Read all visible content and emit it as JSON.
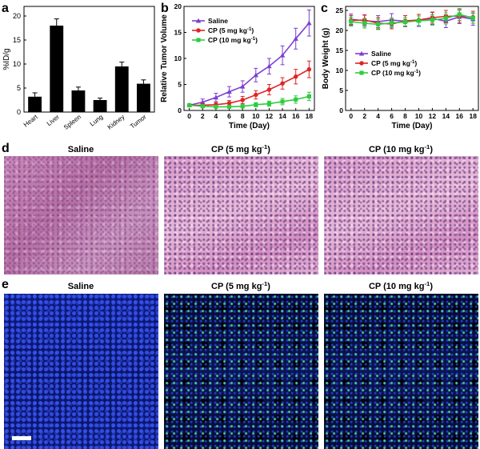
{
  "panel_labels": {
    "a": "a",
    "b": "b",
    "c": "c",
    "d": "d",
    "e": "e"
  },
  "colors": {
    "saline": "#7b3fd1",
    "cp5": "#e02424",
    "cp10": "#2ecc40",
    "bar": "#000000"
  },
  "chart_data": [
    {
      "id": "a",
      "type": "bar",
      "title": "",
      "xlabel": "",
      "ylabel": "%ID/g",
      "categories": [
        "Heart",
        "Liver",
        "Spleen",
        "Lung",
        "Kidney",
        "Tumor"
      ],
      "values": [
        3.2,
        18.0,
        4.5,
        2.5,
        9.5,
        5.9
      ],
      "errors": [
        0.8,
        1.4,
        0.7,
        0.4,
        0.9,
        0.8
      ],
      "ylim": [
        0,
        22
      ],
      "yticks": [
        0,
        5,
        10,
        15,
        20
      ],
      "ytick_labels": [
        "0",
        "5",
        "10",
        "15",
        "20"
      ]
    },
    {
      "id": "b",
      "type": "line",
      "xlabel": "Time (Day)",
      "ylabel": "Relative Tumor Volume",
      "x": [
        0,
        2,
        4,
        6,
        8,
        10,
        12,
        14,
        16,
        18
      ],
      "xlim": [
        -0.8,
        18.8
      ],
      "ylim": [
        0,
        20
      ],
      "xticks": [
        0,
        2,
        4,
        6,
        8,
        10,
        12,
        14,
        16,
        18
      ],
      "xtick_labels": [
        "0",
        "2",
        "4",
        "6",
        "8",
        "10",
        "12",
        "14",
        "16",
        "18"
      ],
      "yticks": [
        0,
        5,
        10,
        15,
        20
      ],
      "ytick_labels": [
        "0",
        "5",
        "10",
        "15",
        "20"
      ],
      "legend_placement": "top-left",
      "series": [
        {
          "name": "Saline",
          "legend_base": "Saline",
          "legend_sup": "",
          "legend_tail": "",
          "color": "#7b3fd1",
          "marker": "triangle",
          "values": [
            1.0,
            1.6,
            2.5,
            3.6,
            4.6,
            6.8,
            8.5,
            10.6,
            13.8,
            16.8
          ],
          "errors": [
            0.3,
            0.6,
            0.8,
            1.0,
            1.1,
            1.3,
            1.5,
            1.8,
            2.0,
            2.5
          ]
        },
        {
          "name": "CP (5 mg kg-1)",
          "legend_base": "CP (5 mg kg",
          "legend_sup": "-1",
          "legend_tail": ")",
          "color": "#e02424",
          "marker": "circle",
          "values": [
            1.0,
            1.0,
            1.1,
            1.4,
            2.0,
            3.0,
            4.0,
            5.2,
            6.5,
            7.9
          ],
          "errors": [
            0.2,
            0.3,
            0.4,
            0.5,
            0.7,
            0.8,
            1.0,
            1.1,
            1.4,
            1.6
          ]
        },
        {
          "name": "CP (10 mg kg-1)",
          "legend_base": "CP (10 mg kg",
          "legend_sup": "-1",
          "legend_tail": ")",
          "color": "#2ecc40",
          "marker": "square",
          "values": [
            1.0,
            0.8,
            0.7,
            0.7,
            0.8,
            1.1,
            1.3,
            1.7,
            2.1,
            2.7
          ],
          "errors": [
            0.2,
            0.2,
            0.2,
            0.3,
            0.3,
            0.4,
            0.5,
            0.6,
            0.7,
            0.8
          ]
        }
      ]
    },
    {
      "id": "c",
      "type": "line",
      "xlabel": "Time (Day)",
      "ylabel": "Body Weight (g)",
      "x": [
        0,
        2,
        4,
        6,
        8,
        10,
        12,
        14,
        16,
        18
      ],
      "xlim": [
        -0.8,
        18.8
      ],
      "ylim": [
        0,
        26
      ],
      "xticks": [
        0,
        2,
        4,
        6,
        8,
        10,
        12,
        14,
        16,
        18
      ],
      "xtick_labels": [
        "0",
        "2",
        "4",
        "6",
        "8",
        "10",
        "12",
        "14",
        "16",
        "18"
      ],
      "yticks": [
        0,
        5,
        10,
        15,
        20,
        25
      ],
      "ytick_labels": [
        "0",
        "5",
        "10",
        "15",
        "20",
        "25"
      ],
      "legend_placement": "center-left",
      "series": [
        {
          "name": "Saline",
          "legend_base": "Saline",
          "legend_sup": "",
          "legend_tail": "",
          "color": "#7b3fd1",
          "marker": "triangle",
          "values": [
            22.8,
            22.4,
            22.2,
            22.6,
            22.3,
            22.5,
            23.0,
            22.3,
            23.4,
            22.8
          ],
          "errors": [
            1.3,
            1.4,
            1.5,
            1.6,
            1.4,
            1.5,
            1.5,
            1.6,
            1.7,
            1.5
          ]
        },
        {
          "name": "CP (5 mg kg-1)",
          "legend_base": "CP (5 mg kg",
          "legend_sup": "-1",
          "legend_tail": ")",
          "color": "#e02424",
          "marker": "circle",
          "values": [
            22.5,
            22.6,
            21.8,
            21.6,
            22.4,
            22.6,
            23.2,
            23.5,
            23.6,
            23.3
          ],
          "errors": [
            1.2,
            1.3,
            1.4,
            1.2,
            1.3,
            1.4,
            1.4,
            1.5,
            1.6,
            1.5
          ]
        },
        {
          "name": "CP (10 mg kg-1)",
          "legend_base": "CP (10 mg kg",
          "legend_sup": "-1",
          "legend_tail": ")",
          "color": "#2ecc40",
          "marker": "square",
          "values": [
            22.2,
            21.8,
            21.5,
            21.9,
            22.1,
            22.4,
            22.6,
            23.0,
            24.0,
            23.1
          ],
          "errors": [
            1.1,
            1.2,
            1.3,
            1.2,
            1.1,
            1.2,
            1.3,
            1.4,
            1.5,
            1.3
          ]
        }
      ]
    }
  ],
  "micrographs": {
    "d": {
      "titles": [
        {
          "base": "Saline",
          "sup": "",
          "tail": ""
        },
        {
          "base": "CP (5 mg kg",
          "sup": "-1",
          "tail": ")"
        },
        {
          "base": "CP (10 mg kg",
          "sup": "-1",
          "tail": ")"
        }
      ]
    },
    "e": {
      "titles": [
        {
          "base": "Saline",
          "sup": "",
          "tail": ""
        },
        {
          "base": "CP (5 mg kg",
          "sup": "-1",
          "tail": ")"
        },
        {
          "base": "CP (10 mg kg",
          "sup": "-1",
          "tail": ")"
        }
      ]
    }
  }
}
